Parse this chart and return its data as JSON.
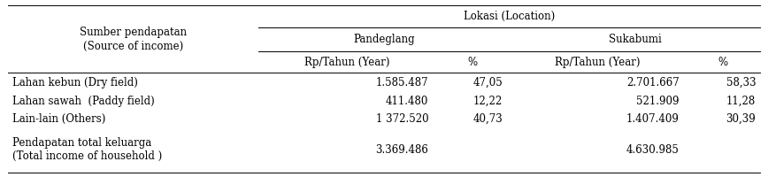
{
  "bg_color": "#ffffff",
  "text_color": "#000000",
  "font_size": 8.5,
  "header_font_size": 8.5,
  "rows": [
    [
      "Lahan kebun (Dry field)",
      "1.585.487",
      "47,05",
      "2.701.667",
      "58,33"
    ],
    [
      "Lahan sawah  (Paddy field)",
      "411.480",
      "12,22",
      "521.909",
      "11,28"
    ],
    [
      "Lain-lain (Others)",
      "1 372.520",
      "40,73",
      "1.407.409",
      "30,39"
    ],
    [
      "Pendapatan total keluarga\n(Total income of household )",
      "3.369.486",
      "",
      "4.630.985",
      ""
    ]
  ],
  "lokasi_label": "Lokasi (Location)",
  "pandeglang_label": "Pandeglang",
  "sukabumi_label": "Sukabumi",
  "sumber_label": "Sumber pendapatan\n(Source of income)",
  "rp_label": "Rp/Tahun (Year)",
  "pct_label": "%",
  "col_widths_inch": [
    2.2,
    1.55,
    0.65,
    1.55,
    0.65
  ],
  "fig_width": 8.68,
  "fig_height": 2.0,
  "dpi": 100
}
